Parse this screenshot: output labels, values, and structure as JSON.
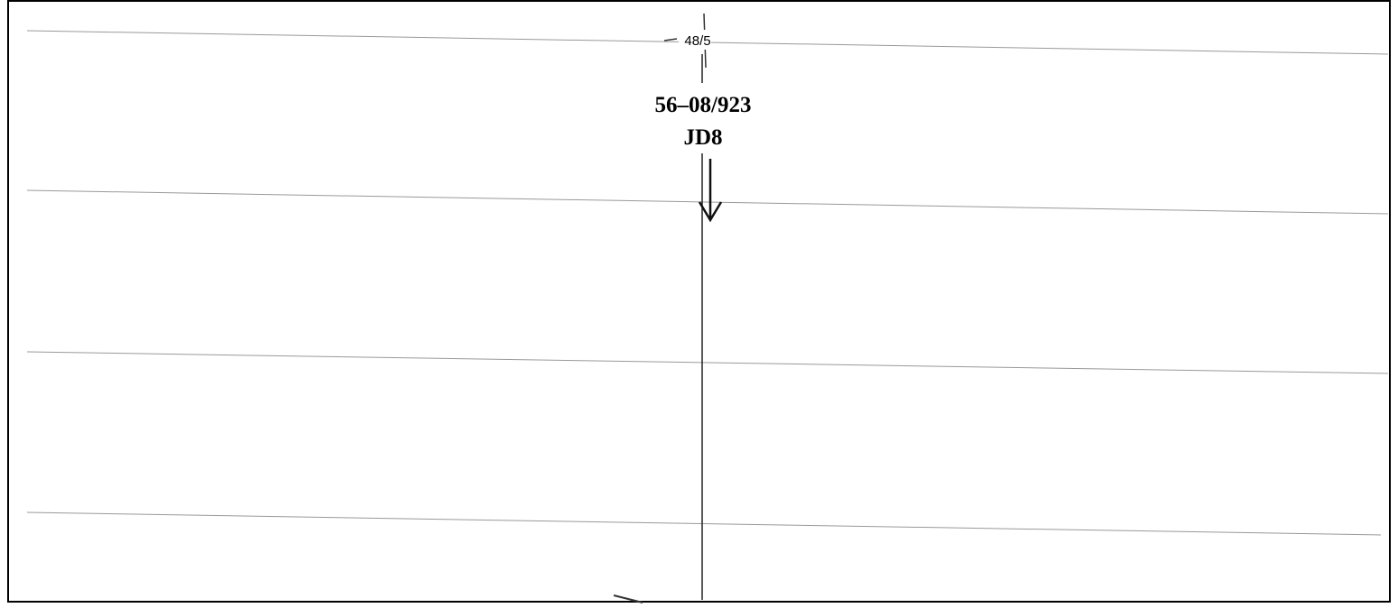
{
  "labels": {
    "marker": "48/5",
    "station": "56–08/923",
    "code": "JD8"
  }
}
